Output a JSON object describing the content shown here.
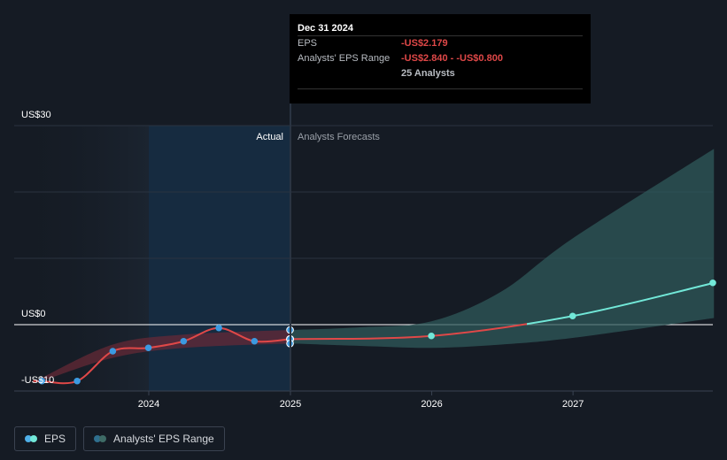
{
  "tooltip": {
    "date": "Dec 31 2024",
    "eps_label": "EPS",
    "eps_value": "-US$2.179",
    "range_label": "Analysts' EPS Range",
    "range_value": "-US$2.840 - -US$0.800",
    "analysts": "25 Analysts"
  },
  "labels": {
    "actual": "Actual",
    "forecast": "Analysts Forecasts"
  },
  "legend": [
    {
      "label": "EPS",
      "colors": [
        "#4fb0e8",
        "#72e8d8"
      ]
    },
    {
      "label": "Analysts' EPS Range",
      "colors": [
        "#2f6f8e",
        "#3e6b66"
      ]
    }
  ],
  "colors": {
    "background": "#151b24",
    "actual_shade": "#17324a",
    "eps_line": "#e04848",
    "forecast_line": "#72e8d8",
    "actual_point": "#3b9ae1",
    "range_actual": "#6a2a36",
    "range_forecast": "#2f5a5a"
  },
  "chart_data": {
    "type": "line",
    "title": "",
    "y_ticks": [
      "US$30",
      "US$0",
      "-US$10"
    ],
    "ylim": [
      -10,
      30
    ],
    "x_ticks": [
      "2024",
      "2025",
      "2026",
      "2027"
    ],
    "xlim": [
      "2023-03-01",
      "2027-12-31"
    ],
    "series": [
      {
        "name": "EPS",
        "segment": "actual",
        "points": [
          {
            "x": "2023-03-31",
            "y": -8.5
          },
          {
            "x": "2023-06-30",
            "y": -8.5
          },
          {
            "x": "2023-09-30",
            "y": -4.0
          },
          {
            "x": "2023-12-31",
            "y": -3.5
          },
          {
            "x": "2024-03-31",
            "y": -2.5
          },
          {
            "x": "2024-06-30",
            "y": -0.5
          },
          {
            "x": "2024-09-30",
            "y": -2.5
          },
          {
            "x": "2024-12-31",
            "y": -2.179
          }
        ]
      },
      {
        "name": "EPS",
        "segment": "forecast",
        "points": [
          {
            "x": "2024-12-31",
            "y": -2.179
          },
          {
            "x": "2025-12-31",
            "y": -1.7
          },
          {
            "x": "2026-12-31",
            "y": 1.3
          },
          {
            "x": "2027-12-31",
            "y": 6.3
          }
        ]
      },
      {
        "name": "Analysts' EPS Range",
        "segment": "actual",
        "upper": [
          {
            "x": "2023-03-31",
            "y": -8.0
          },
          {
            "x": "2023-09-30",
            "y": -3.0
          },
          {
            "x": "2024-03-31",
            "y": -1.5
          },
          {
            "x": "2024-12-31",
            "y": -0.8
          }
        ],
        "lower": [
          {
            "x": "2023-03-31",
            "y": -8.5
          },
          {
            "x": "2023-09-30",
            "y": -5.0
          },
          {
            "x": "2024-03-31",
            "y": -3.5
          },
          {
            "x": "2024-12-31",
            "y": -2.84
          }
        ]
      },
      {
        "name": "Analysts' EPS Range",
        "segment": "forecast",
        "upper": [
          {
            "x": "2024-12-31",
            "y": -0.8
          },
          {
            "x": "2025-06-30",
            "y": -0.4
          },
          {
            "x": "2025-12-31",
            "y": 0.5
          },
          {
            "x": "2026-06-30",
            "y": 5.0
          },
          {
            "x": "2026-12-31",
            "y": 13.0
          },
          {
            "x": "2027-12-31",
            "y": 26.5
          }
        ],
        "lower": [
          {
            "x": "2024-12-31",
            "y": -2.84
          },
          {
            "x": "2025-06-30",
            "y": -3.2
          },
          {
            "x": "2025-12-31",
            "y": -3.5
          },
          {
            "x": "2026-06-30",
            "y": -3.0
          },
          {
            "x": "2026-12-31",
            "y": -2.0
          },
          {
            "x": "2027-12-31",
            "y": 1.0
          }
        ]
      }
    ],
    "extra_points": [
      {
        "x": "2024-12-31",
        "y": -0.8
      },
      {
        "x": "2024-12-31",
        "y": -2.179
      },
      {
        "x": "2024-12-31",
        "y": -2.84
      }
    ],
    "legend_position": "bottom-left",
    "grid": true
  }
}
